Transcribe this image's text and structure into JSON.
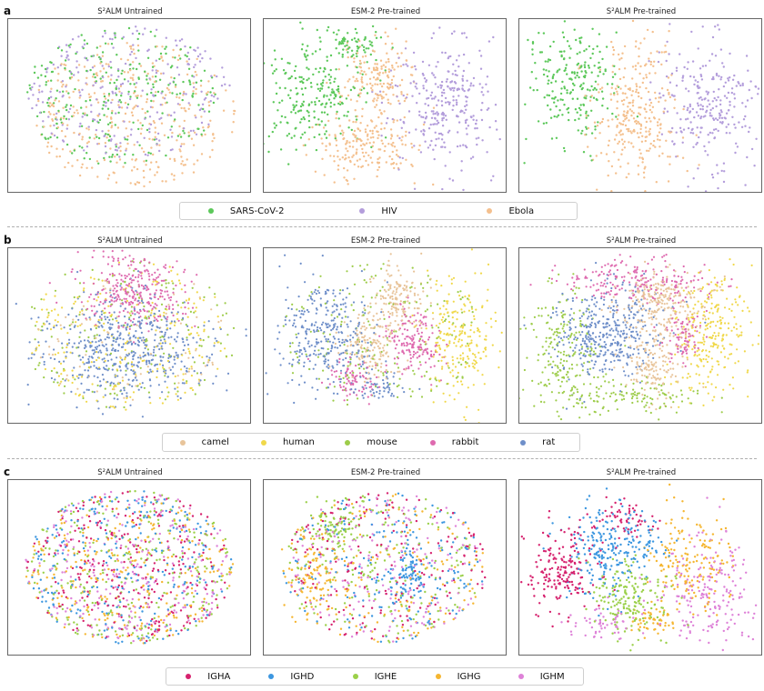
{
  "rows": [
    {
      "letter": "a",
      "titles": [
        "S²ALM Untrained",
        "ESM-2 Pre-trained",
        "S²ALM Pre-trained"
      ],
      "legend": [
        {
          "label": "SARS-CoV-2",
          "color": "#5cc85a"
        },
        {
          "label": "HIV",
          "color": "#b39ddb"
        },
        {
          "label": "Ebola",
          "color": "#f4c08e"
        }
      ]
    },
    {
      "letter": "b",
      "titles": [
        "S²ALM Untrained",
        "ESM-2 Pre-trained",
        "S²ALM Pre-trained"
      ],
      "legend": [
        {
          "label": "camel",
          "color": "#e8c49a"
        },
        {
          "label": "human",
          "color": "#f0d84a"
        },
        {
          "label": "mouse",
          "color": "#9dcc4a"
        },
        {
          "label": "rabbit",
          "color": "#de6aaf"
        },
        {
          "label": "rat",
          "color": "#6f8fc9"
        }
      ]
    },
    {
      "letter": "c",
      "titles": [
        "S²ALM Untrained",
        "ESM-2 Pre-trained",
        "S²ALM Pre-trained"
      ],
      "legend": [
        {
          "label": "IGHA",
          "color": "#d6226e"
        },
        {
          "label": "IGHD",
          "color": "#3d97e0"
        },
        {
          "label": "IGHE",
          "color": "#9bd04a"
        },
        {
          "label": "IGHG",
          "color": "#f5b631"
        },
        {
          "label": "IGHM",
          "color": "#de82d8"
        }
      ]
    }
  ],
  "chart_data": [
    {
      "type": "scatter",
      "title": "S²ALM Untrained",
      "panel": "a",
      "series": [
        "SARS-CoV-2",
        "HIV",
        "Ebola"
      ],
      "grid": false
    },
    {
      "type": "scatter",
      "title": "ESM-2 Pre-trained",
      "panel": "a",
      "series": [
        "SARS-CoV-2",
        "HIV",
        "Ebola"
      ],
      "grid": false
    },
    {
      "type": "scatter",
      "title": "S²ALM Pre-trained",
      "panel": "a",
      "series": [
        "SARS-CoV-2",
        "HIV",
        "Ebola"
      ],
      "grid": false
    },
    {
      "type": "scatter",
      "title": "S²ALM Untrained",
      "panel": "b",
      "series": [
        "camel",
        "human",
        "mouse",
        "rabbit",
        "rat"
      ],
      "grid": false
    },
    {
      "type": "scatter",
      "title": "ESM-2 Pre-trained",
      "panel": "b",
      "series": [
        "camel",
        "human",
        "mouse",
        "rabbit",
        "rat"
      ],
      "grid": false
    },
    {
      "type": "scatter",
      "title": "S²ALM Pre-trained",
      "panel": "b",
      "series": [
        "camel",
        "human",
        "mouse",
        "rabbit",
        "rat"
      ],
      "grid": false
    },
    {
      "type": "scatter",
      "title": "S²ALM Untrained",
      "panel": "c",
      "series": [
        "IGHA",
        "IGHD",
        "IGHE",
        "IGHG",
        "IGHM"
      ],
      "grid": false
    },
    {
      "type": "scatter",
      "title": "ESM-2 Pre-trained",
      "panel": "c",
      "series": [
        "IGHA",
        "IGHD",
        "IGHE",
        "IGHG",
        "IGHM"
      ],
      "grid": false
    },
    {
      "type": "scatter",
      "title": "S²ALM Pre-trained",
      "panel": "c",
      "series": [
        "IGHA",
        "IGHD",
        "IGHE",
        "IGHG",
        "IGHM"
      ],
      "grid": false
    }
  ]
}
